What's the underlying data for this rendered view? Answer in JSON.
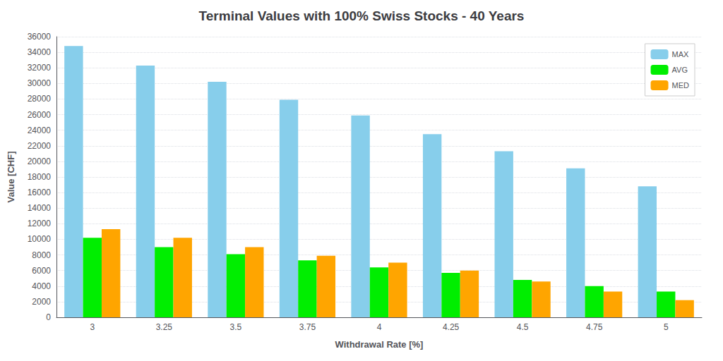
{
  "chart_data": {
    "type": "bar",
    "title": "Terminal Values with 100% Swiss Stocks - 40 Years",
    "xlabel": "Withdrawal Rate [%]",
    "ylabel": "Value [CHF]",
    "categories": [
      "3",
      "3.25",
      "3.5",
      "3.75",
      "4",
      "4.25",
      "4.5",
      "4.75",
      "5"
    ],
    "series": [
      {
        "name": "MAX",
        "color": "#87CEEB",
        "values": [
          34800,
          32300,
          30200,
          27900,
          25900,
          23500,
          21300,
          19100,
          16800
        ]
      },
      {
        "name": "AVG",
        "color": "#00EE00",
        "values": [
          10200,
          9000,
          8100,
          7300,
          6400,
          5700,
          4800,
          4000,
          3300
        ]
      },
      {
        "name": "MED",
        "color": "#FFA500",
        "values": [
          11300,
          10200,
          9000,
          7900,
          7000,
          6000,
          4600,
          3300,
          2200
        ]
      }
    ],
    "ylim": [
      0,
      36000
    ],
    "yticks": [
      0,
      2000,
      4000,
      6000,
      8000,
      10000,
      12000,
      14000,
      16000,
      18000,
      20000,
      22000,
      24000,
      26000,
      28000,
      30000,
      32000,
      34000,
      36000
    ],
    "grid": true,
    "legend": "upper right"
  }
}
